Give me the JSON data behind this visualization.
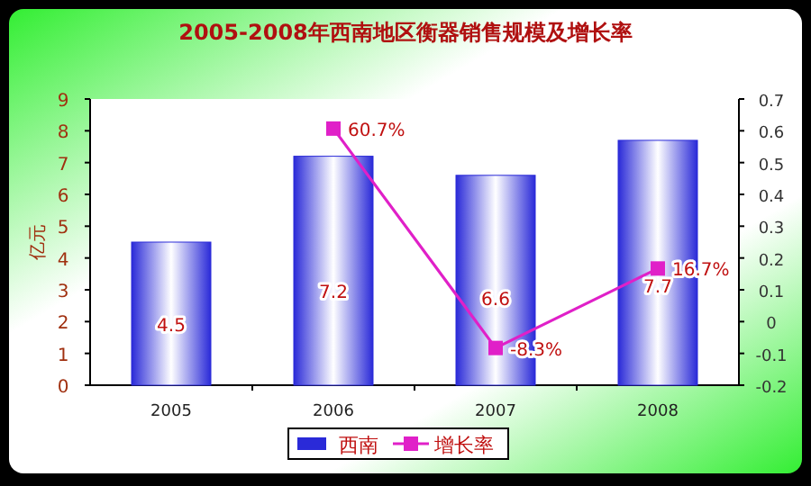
{
  "chart_data": {
    "type": "bar",
    "title": "2005-2008年西南地区衡器销售规模及增长率",
    "ylabel": "亿元",
    "categories": [
      "2005",
      "2006",
      "2007",
      "2008"
    ],
    "series": [
      {
        "name": "西南",
        "color": "#2a2ad8",
        "values": [
          4.5,
          7.2,
          6.6,
          7.7
        ],
        "value_labels": [
          "4.5",
          "7.2",
          "6.6",
          "7.7"
        ]
      },
      {
        "name": "增长率",
        "type": "line",
        "axis": "y2",
        "color": "#e020c8",
        "marker": "square",
        "values": [
          null,
          0.607,
          -0.083,
          0.167
        ],
        "value_labels": [
          null,
          "60.7%",
          "-8.3%",
          "16.7%"
        ]
      }
    ],
    "ylim": [
      0,
      9
    ],
    "yticks": [
      0,
      1,
      2,
      3,
      4,
      5,
      6,
      7,
      8,
      9
    ],
    "y2lim": [
      -0.2,
      0.7
    ],
    "y2ticks": [
      -0.2,
      -0.1,
      {
        "value": 0,
        "label": "0"
      },
      0.1,
      0.2,
      0.3,
      0.4,
      0.5,
      0.6,
      0.7
    ],
    "legend": "bottom",
    "grid": false
  }
}
